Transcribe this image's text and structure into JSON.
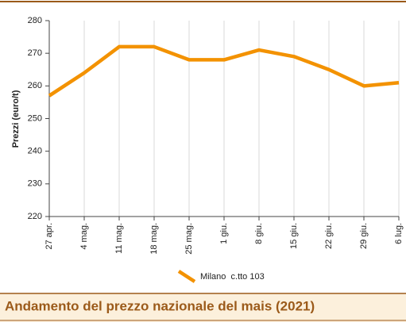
{
  "chart_data": {
    "type": "line",
    "title": "Andamento del prezzo nazionale del mais (2021)",
    "y_label": "Prezzi (euro/t)",
    "categories": [
      "27 apr.",
      "4 mag.",
      "11 mag.",
      "18 mag.",
      "25 mag.",
      "1 giu.",
      "8 giu.",
      "15 giu.",
      "22 giu.",
      "29 giu.",
      "6 lug."
    ],
    "series": [
      {
        "name": "Milano  c.tto 103",
        "color": "#f39200",
        "values": [
          257,
          264,
          272,
          272,
          268,
          268,
          271,
          269,
          265,
          260,
          261
        ]
      }
    ],
    "ylim": [
      220,
      280
    ],
    "yticks": [
      220,
      230,
      240,
      250,
      260,
      270,
      280
    ],
    "grid": "x"
  }
}
